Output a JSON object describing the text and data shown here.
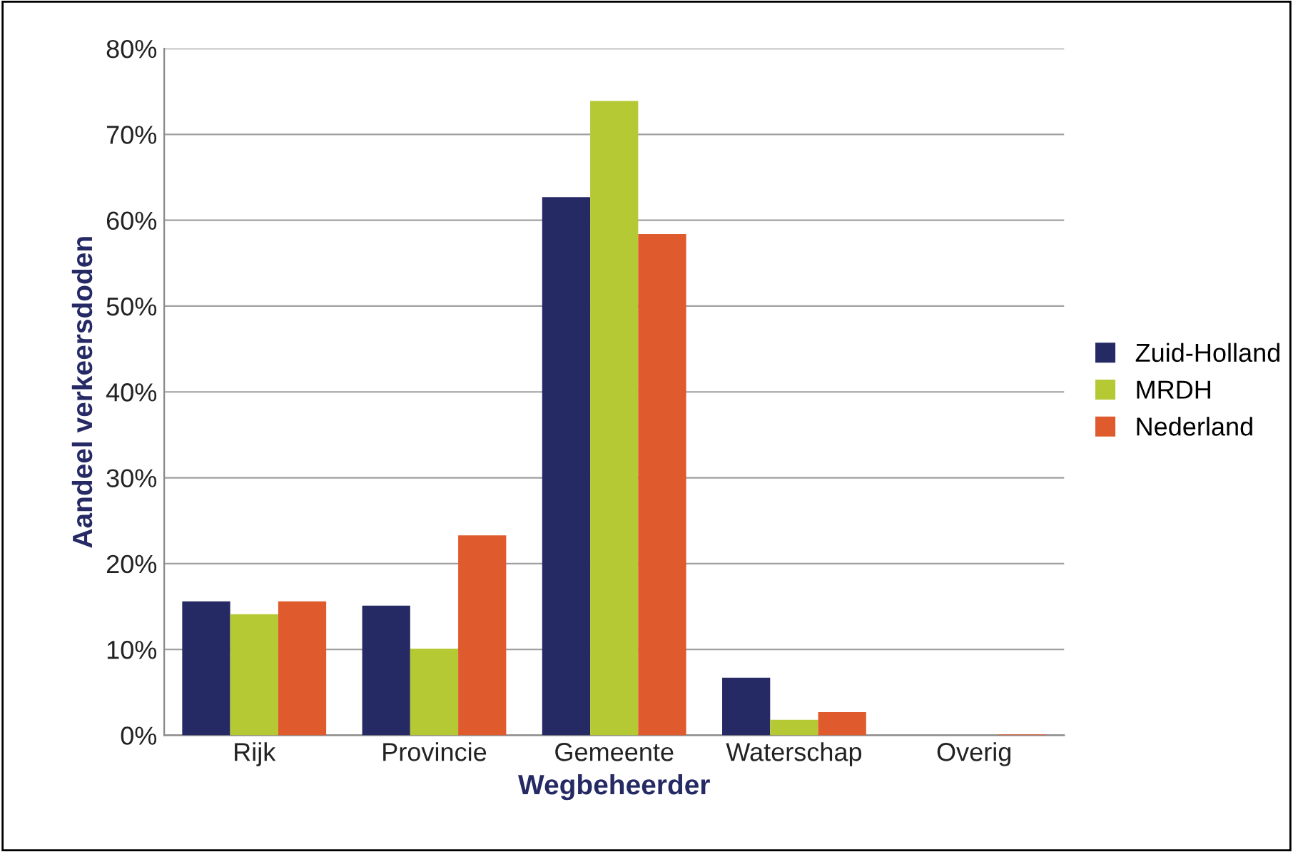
{
  "chart_data": {
    "type": "bar",
    "xlabel": "Wegbeheerder",
    "ylabel": "Aandeel verkeersdoden",
    "categories": [
      "Rijk",
      "Provincie",
      "Gemeente",
      "Waterschap",
      "Overig"
    ],
    "series": [
      {
        "name": "Zuid-Holland",
        "color": "#262a64",
        "values": [
          15.6,
          15.1,
          62.7,
          6.7,
          0
        ]
      },
      {
        "name": "MRDH",
        "color": "#b5c935",
        "values": [
          14.1,
          10.1,
          73.9,
          1.8,
          0
        ]
      },
      {
        "name": "Nederland",
        "color": "#df5a2c",
        "values": [
          15.6,
          23.3,
          58.4,
          2.7,
          0.1
        ]
      }
    ],
    "ylim": [
      0,
      80
    ],
    "yticks": [
      {
        "value": 0,
        "label": "0%"
      },
      {
        "value": 10,
        "label": "10%"
      },
      {
        "value": 20,
        "label": "20%"
      },
      {
        "value": 30,
        "label": "30%"
      },
      {
        "value": 40,
        "label": "40%"
      },
      {
        "value": 50,
        "label": "50%"
      },
      {
        "value": 60,
        "label": "60%"
      },
      {
        "value": 70,
        "label": "70%"
      },
      {
        "value": 80,
        "label": "80%"
      }
    ],
    "grid": "y",
    "legend": "right"
  }
}
